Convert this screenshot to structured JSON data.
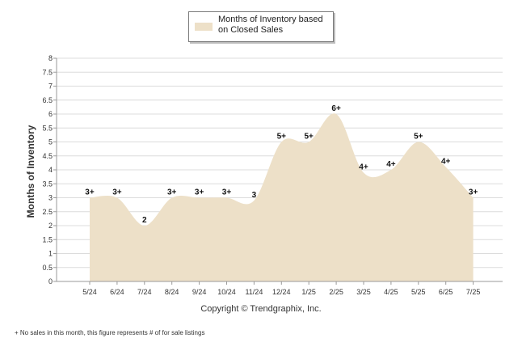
{
  "legend": {
    "label": "Months of Inventory based on Closed Sales"
  },
  "copyright": "Copyright © Trendgraphix, Inc.",
  "footnote": "+ No sales in this month, this figure represents # of for sale listings",
  "colors": {
    "area_fill": "#ede0c8",
    "grid": "#dcdcdc",
    "axis": "#9a9a9a"
  },
  "chart_data": {
    "type": "area",
    "ylabel": "Months of Inventory",
    "ylim": [
      0,
      8
    ],
    "yticks": [
      "0",
      "0.5",
      "1",
      "1.5",
      "2",
      "2.5",
      "3",
      "3.5",
      "4",
      "4.5",
      "5",
      "5.5",
      "6",
      "6.5",
      "7",
      "7.5",
      "8"
    ],
    "categories": [
      "5/24",
      "6/24",
      "7/24",
      "8/24",
      "9/24",
      "10/24",
      "11/24",
      "12/24",
      "1/25",
      "2/25",
      "3/25",
      "4/25",
      "5/25",
      "6/25",
      "7/25"
    ],
    "values": [
      3.0,
      3.0,
      2.0,
      3.0,
      3.0,
      3.0,
      2.9,
      5.0,
      5.0,
      6.0,
      3.9,
      4.0,
      5.0,
      4.1,
      3.0
    ],
    "data_labels": [
      "3+",
      "3+",
      "2",
      "3+",
      "3+",
      "3+",
      "3",
      "5+",
      "5+",
      "6+",
      "4+",
      "4+",
      "5+",
      "4+",
      "3+"
    ],
    "grid": true,
    "legend_position": "top-center"
  }
}
